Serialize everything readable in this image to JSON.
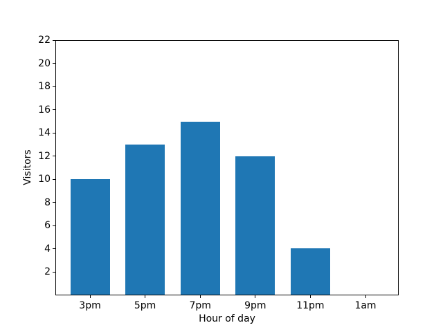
{
  "chart_data": {
    "type": "bar",
    "title": "",
    "categories": [
      "3pm",
      "5pm",
      "7pm",
      "9pm",
      "11pm",
      "1am"
    ],
    "values": [
      10,
      13,
      15,
      12,
      4,
      0
    ],
    "xlabel": "Hour of day",
    "ylabel": "Visitors",
    "ylim": [
      0,
      22
    ],
    "yticks": [
      2,
      4,
      6,
      8,
      10,
      12,
      14,
      16,
      18,
      20,
      22
    ],
    "bar_color": "#1f77b4",
    "grid": false,
    "legend": null
  },
  "figure": {
    "background": "#ffffff",
    "spine_color": "#000000",
    "text_color": "#000000"
  }
}
